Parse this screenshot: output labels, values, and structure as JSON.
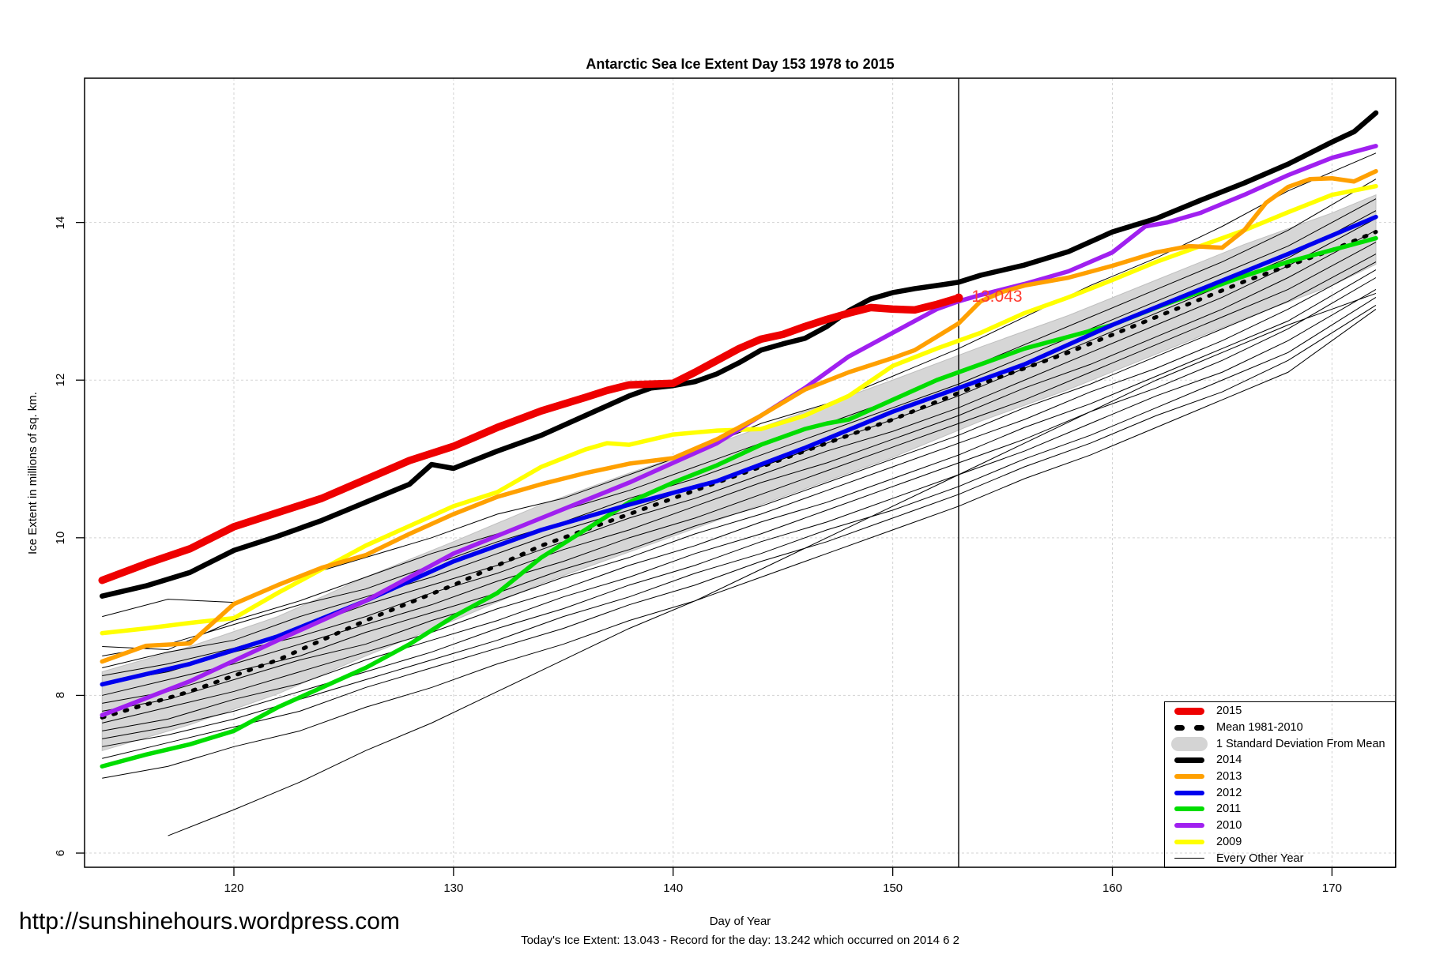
{
  "page": {
    "url_text": "http://sunshinehours.wordpress.com"
  },
  "chart_data": {
    "type": "line",
    "title": "Antarctic Sea Ice Extent Day 153 1978 to 2015",
    "xlabel": "Day of Year",
    "ylabel": "Ice Extent in millions of sq. km.",
    "footer": "Today's Ice Extent: 13.043  - Record for the day: 13.242 which occurred on 2014 6 2",
    "x_domain": [
      113.2,
      172.9
    ],
    "y_domain": [
      5.82,
      15.83
    ],
    "xticks": [
      120,
      130,
      140,
      150,
      160,
      170
    ],
    "yticks": [
      6,
      8,
      10,
      12,
      14
    ],
    "grid": "dashed",
    "grid_color": "#D3D3D3",
    "vline_day": 153,
    "annotation": {
      "text": "13.043",
      "day": 153.3,
      "value": 13.05,
      "color": "#FF3B30"
    },
    "band": {
      "name": "1 Standard Deviation From Mean",
      "fill": "#D6D6D6",
      "edge": "#BFBFBF",
      "days": [
        114,
        118,
        122,
        126,
        130,
        134,
        138,
        142,
        146,
        150,
        154,
        158,
        162,
        166,
        170,
        172
      ],
      "upper": [
        8.3,
        8.62,
        9.0,
        9.5,
        9.95,
        10.42,
        10.82,
        11.2,
        11.6,
        12.0,
        12.42,
        12.82,
        13.27,
        13.72,
        14.12,
        14.35
      ],
      "lower": [
        7.3,
        7.63,
        8.02,
        8.5,
        8.95,
        9.42,
        9.82,
        10.22,
        10.62,
        11.02,
        11.48,
        11.88,
        12.33,
        12.78,
        13.2,
        13.47
      ]
    },
    "series": [
      {
        "name": "mean",
        "label": "Mean 1981-2010",
        "color": "#000000",
        "width": 5,
        "dash": "3 12",
        "days": [
          114,
          118,
          122,
          126,
          130,
          134,
          138,
          142,
          146,
          150,
          154,
          158,
          162,
          166,
          170,
          172
        ],
        "values": [
          7.72,
          8.05,
          8.45,
          8.95,
          9.4,
          9.9,
          10.3,
          10.7,
          11.1,
          11.5,
          11.95,
          12.35,
          12.8,
          13.25,
          13.65,
          13.88
        ]
      },
      {
        "name": "y2009",
        "label": "2009",
        "color": "#FFFF00",
        "width": 5.5,
        "dash": null,
        "days": [
          114,
          116,
          118,
          120,
          122,
          124,
          126,
          128,
          130,
          132,
          134,
          136,
          137,
          138,
          140,
          142,
          144,
          146,
          148,
          150,
          152,
          154,
          156,
          158,
          160,
          162,
          164,
          166,
          168,
          170,
          172
        ],
        "values": [
          8.79,
          8.85,
          8.92,
          8.98,
          9.3,
          9.6,
          9.9,
          10.15,
          10.4,
          10.58,
          10.9,
          11.12,
          11.2,
          11.18,
          11.31,
          11.36,
          11.38,
          11.55,
          11.8,
          12.18,
          12.4,
          12.6,
          12.85,
          13.05,
          13.27,
          13.5,
          13.7,
          13.9,
          14.13,
          14.35,
          14.46
        ]
      },
      {
        "name": "y2011",
        "label": "2011",
        "color": "#00DD00",
        "width": 5.5,
        "dash": null,
        "days": [
          114,
          116,
          118,
          120,
          122,
          124,
          126,
          128,
          130,
          132,
          134,
          136,
          138,
          140,
          142,
          144,
          146,
          147,
          148,
          150,
          152,
          154,
          156,
          158,
          160,
          162,
          164,
          166,
          168,
          170,
          172
        ],
        "values": [
          7.1,
          7.25,
          7.38,
          7.55,
          7.85,
          8.1,
          8.35,
          8.65,
          9.0,
          9.3,
          9.75,
          10.1,
          10.45,
          10.7,
          10.92,
          11.18,
          11.38,
          11.45,
          11.5,
          11.75,
          12.0,
          12.2,
          12.4,
          12.55,
          12.7,
          12.92,
          13.12,
          13.32,
          13.5,
          13.65,
          13.8
        ]
      },
      {
        "name": "y2012",
        "label": "2012",
        "color": "#0000EE",
        "width": 5.5,
        "dash": null,
        "days": [
          114,
          118,
          122,
          126,
          130,
          134,
          138,
          142,
          146,
          150,
          153,
          156,
          160,
          164,
          168,
          172
        ],
        "values": [
          8.14,
          8.4,
          8.75,
          9.2,
          9.7,
          10.1,
          10.42,
          10.72,
          11.14,
          11.6,
          11.9,
          12.2,
          12.7,
          13.15,
          13.6,
          14.07
        ]
      },
      {
        "name": "y2010",
        "label": "2010",
        "color": "#A020F0",
        "width": 5.5,
        "dash": null,
        "days": [
          114,
          118,
          122,
          126,
          130,
          134,
          138,
          140,
          142,
          144,
          146,
          148,
          150,
          152,
          153,
          154,
          156,
          158,
          160,
          161.5,
          162.5,
          164,
          166,
          168,
          170,
          172
        ],
        "values": [
          7.75,
          8.18,
          8.7,
          9.2,
          9.8,
          10.25,
          10.7,
          10.95,
          11.2,
          11.55,
          11.9,
          12.3,
          12.6,
          12.9,
          13.0,
          13.08,
          13.22,
          13.38,
          13.62,
          13.95,
          14.0,
          14.12,
          14.35,
          14.6,
          14.82,
          14.97
        ]
      },
      {
        "name": "y2013",
        "label": "2013",
        "color": "#FFA000",
        "width": 5.5,
        "dash": null,
        "days": [
          114,
          116,
          118,
          120,
          122,
          124,
          126,
          128,
          130,
          132,
          134,
          136,
          138,
          140,
          142,
          144,
          146,
          148,
          150,
          151,
          152,
          153,
          154,
          155,
          156,
          158,
          160,
          162,
          163.5,
          165,
          166,
          167,
          168,
          169,
          170,
          171,
          172
        ],
        "values": [
          8.43,
          8.63,
          8.66,
          9.16,
          9.4,
          9.62,
          9.78,
          10.05,
          10.3,
          10.52,
          10.68,
          10.82,
          10.94,
          11.01,
          11.25,
          11.55,
          11.88,
          12.1,
          12.28,
          12.38,
          12.55,
          12.72,
          13.0,
          13.12,
          13.2,
          13.3,
          13.45,
          13.62,
          13.7,
          13.68,
          13.9,
          14.25,
          14.45,
          14.55,
          14.56,
          14.52,
          14.65
        ]
      },
      {
        "name": "y2014",
        "label": "2014",
        "color": "#000000",
        "width": 6.5,
        "dash": null,
        "days": [
          114,
          116,
          118,
          120,
          122,
          124,
          126,
          128,
          129,
          130,
          132,
          134,
          136,
          138,
          139,
          140,
          141,
          142,
          143,
          144,
          145,
          146,
          147,
          148,
          149,
          150,
          151,
          152,
          153,
          154,
          156,
          158,
          160,
          162,
          164,
          166,
          168,
          170,
          171,
          172
        ],
        "values": [
          9.26,
          9.39,
          9.56,
          9.84,
          10.02,
          10.22,
          10.45,
          10.68,
          10.93,
          10.88,
          11.1,
          11.3,
          11.55,
          11.8,
          11.9,
          11.93,
          11.98,
          12.08,
          12.22,
          12.38,
          12.46,
          12.53,
          12.68,
          12.88,
          13.03,
          13.11,
          13.16,
          13.2,
          13.242,
          13.33,
          13.46,
          13.63,
          13.88,
          14.05,
          14.28,
          14.5,
          14.74,
          15.02,
          15.15,
          15.39
        ]
      },
      {
        "name": "y2015",
        "label": "2015",
        "color": "#EE0000",
        "width": 9.5,
        "dash": null,
        "days": [
          114,
          116,
          118,
          120,
          122,
          124,
          126,
          128,
          130,
          131,
          132,
          134,
          136,
          137,
          138,
          139,
          140,
          141,
          142,
          143,
          144,
          145,
          146,
          147,
          148,
          149,
          150,
          151,
          152,
          153
        ],
        "values": [
          9.46,
          9.67,
          9.86,
          10.14,
          10.32,
          10.5,
          10.74,
          10.98,
          11.16,
          11.28,
          11.4,
          11.61,
          11.78,
          11.87,
          11.94,
          11.95,
          11.96,
          12.1,
          12.25,
          12.4,
          12.52,
          12.58,
          12.68,
          12.77,
          12.85,
          12.92,
          12.9,
          12.89,
          12.96,
          13.043
        ]
      }
    ],
    "other_years": {
      "label": "Every Other Year",
      "color": "#000000",
      "days": [
        114,
        117,
        120,
        123,
        126,
        129,
        132,
        135,
        138,
        141,
        144,
        147,
        150,
        153,
        156,
        159,
        162,
        165,
        168,
        172
      ],
      "lines": [
        [
          9.0,
          9.22,
          9.18,
          9.5,
          9.75,
          10.0,
          10.3,
          10.5,
          10.8,
          11.1,
          11.45,
          11.7,
          12.05,
          12.4,
          12.8,
          13.2,
          13.55,
          13.95,
          14.4,
          14.88
        ],
        [
          8.62,
          8.58,
          8.95,
          9.2,
          9.5,
          9.8,
          10.05,
          10.35,
          10.6,
          10.9,
          11.2,
          11.45,
          11.75,
          12.1,
          12.45,
          12.8,
          13.15,
          13.5,
          13.9,
          14.55
        ],
        [
          8.5,
          8.65,
          8.9,
          9.15,
          9.35,
          9.65,
          9.95,
          10.2,
          10.5,
          10.75,
          11.05,
          11.35,
          11.65,
          11.95,
          12.3,
          12.65,
          13.0,
          13.35,
          13.7,
          14.3
        ],
        [
          8.35,
          8.55,
          8.7,
          9.0,
          9.25,
          9.5,
          9.8,
          10.1,
          10.35,
          10.65,
          10.9,
          11.2,
          11.5,
          11.8,
          12.15,
          12.5,
          12.85,
          13.2,
          13.55,
          14.15
        ],
        [
          8.25,
          8.4,
          8.6,
          8.85,
          9.15,
          9.4,
          9.65,
          9.95,
          10.25,
          10.5,
          10.8,
          11.1,
          11.35,
          11.65,
          12.0,
          12.35,
          12.7,
          13.05,
          13.45,
          14.05
        ],
        [
          8.15,
          8.3,
          8.55,
          8.75,
          9.0,
          9.3,
          9.55,
          9.85,
          10.1,
          10.4,
          10.7,
          10.95,
          11.25,
          11.55,
          11.9,
          12.2,
          12.55,
          12.9,
          13.3,
          13.9
        ],
        [
          8.0,
          8.2,
          8.4,
          8.65,
          8.9,
          9.15,
          9.45,
          9.7,
          10.0,
          10.25,
          10.55,
          10.85,
          11.15,
          11.45,
          11.75,
          12.1,
          12.45,
          12.8,
          13.15,
          13.75
        ],
        [
          7.9,
          8.05,
          8.3,
          8.5,
          8.8,
          9.05,
          9.3,
          9.6,
          9.85,
          10.15,
          10.4,
          10.7,
          11.0,
          11.3,
          11.65,
          11.95,
          12.3,
          12.65,
          13.0,
          13.6
        ],
        [
          7.8,
          7.95,
          8.2,
          8.45,
          8.65,
          8.95,
          9.2,
          9.5,
          9.75,
          10.05,
          10.3,
          10.6,
          10.9,
          11.2,
          11.5,
          11.85,
          12.15,
          12.5,
          12.9,
          13.5
        ],
        [
          7.65,
          7.85,
          8.05,
          8.3,
          8.55,
          8.8,
          9.1,
          9.35,
          9.65,
          9.9,
          10.2,
          10.45,
          10.75,
          11.05,
          11.4,
          11.7,
          12.05,
          12.4,
          12.75,
          13.4
        ],
        [
          7.55,
          7.7,
          7.95,
          8.15,
          8.45,
          8.7,
          8.95,
          9.25,
          9.5,
          9.8,
          10.05,
          10.35,
          10.65,
          10.95,
          11.25,
          11.6,
          11.9,
          12.25,
          12.65,
          13.3
        ],
        [
          7.45,
          7.6,
          7.8,
          8.05,
          8.3,
          8.55,
          8.85,
          9.1,
          9.4,
          9.65,
          9.95,
          10.2,
          10.5,
          10.8,
          11.1,
          11.45,
          11.8,
          12.1,
          12.5,
          13.15
        ],
        [
          7.35,
          7.5,
          7.7,
          7.95,
          8.2,
          8.45,
          8.7,
          9.0,
          9.25,
          9.55,
          9.8,
          10.1,
          10.35,
          10.65,
          11.0,
          11.3,
          11.65,
          12.0,
          12.35,
          13.05
        ],
        [
          7.2,
          7.4,
          7.6,
          7.8,
          8.1,
          8.35,
          8.6,
          8.85,
          9.15,
          9.4,
          9.7,
          9.95,
          10.25,
          10.55,
          10.9,
          11.2,
          11.55,
          11.85,
          12.25,
          12.95
        ],
        [
          6.95,
          7.1,
          7.35,
          7.55,
          7.85,
          8.1,
          8.4,
          8.65,
          8.95,
          9.2,
          9.5,
          9.8,
          10.1,
          10.4,
          10.75,
          11.05,
          11.4,
          11.75,
          12.1,
          12.9
        ],
        [
          null,
          6.22,
          6.55,
          6.9,
          7.3,
          7.65,
          8.05,
          8.45,
          8.85,
          9.2,
          9.6,
          10.0,
          10.4,
          10.8,
          11.2,
          11.6,
          12.0,
          12.35,
          12.7,
          13.1
        ]
      ]
    },
    "legend": [
      {
        "label": "2015",
        "swatch": "line",
        "color": "#EE0000",
        "lw": 9
      },
      {
        "label": "Mean 1981-2010",
        "swatch": "dashed",
        "color": "#000000",
        "lw": 7
      },
      {
        "label": "1 Standard Deviation From Mean",
        "swatch": "band",
        "color": "#D4D4D4",
        "lw": 18
      },
      {
        "label": "2014",
        "swatch": "line",
        "color": "#000000",
        "lw": 7
      },
      {
        "label": "2013",
        "swatch": "line",
        "color": "#FFA000",
        "lw": 6
      },
      {
        "label": "2012",
        "swatch": "line",
        "color": "#0000EE",
        "lw": 6
      },
      {
        "label": "2011",
        "swatch": "line",
        "color": "#00DD00",
        "lw": 6
      },
      {
        "label": "2010",
        "swatch": "line",
        "color": "#A020F0",
        "lw": 6
      },
      {
        "label": "2009",
        "swatch": "line",
        "color": "#FFFF00",
        "lw": 6
      },
      {
        "label": "Every Other Year",
        "swatch": "thin",
        "color": "#000000",
        "lw": 1
      }
    ]
  }
}
